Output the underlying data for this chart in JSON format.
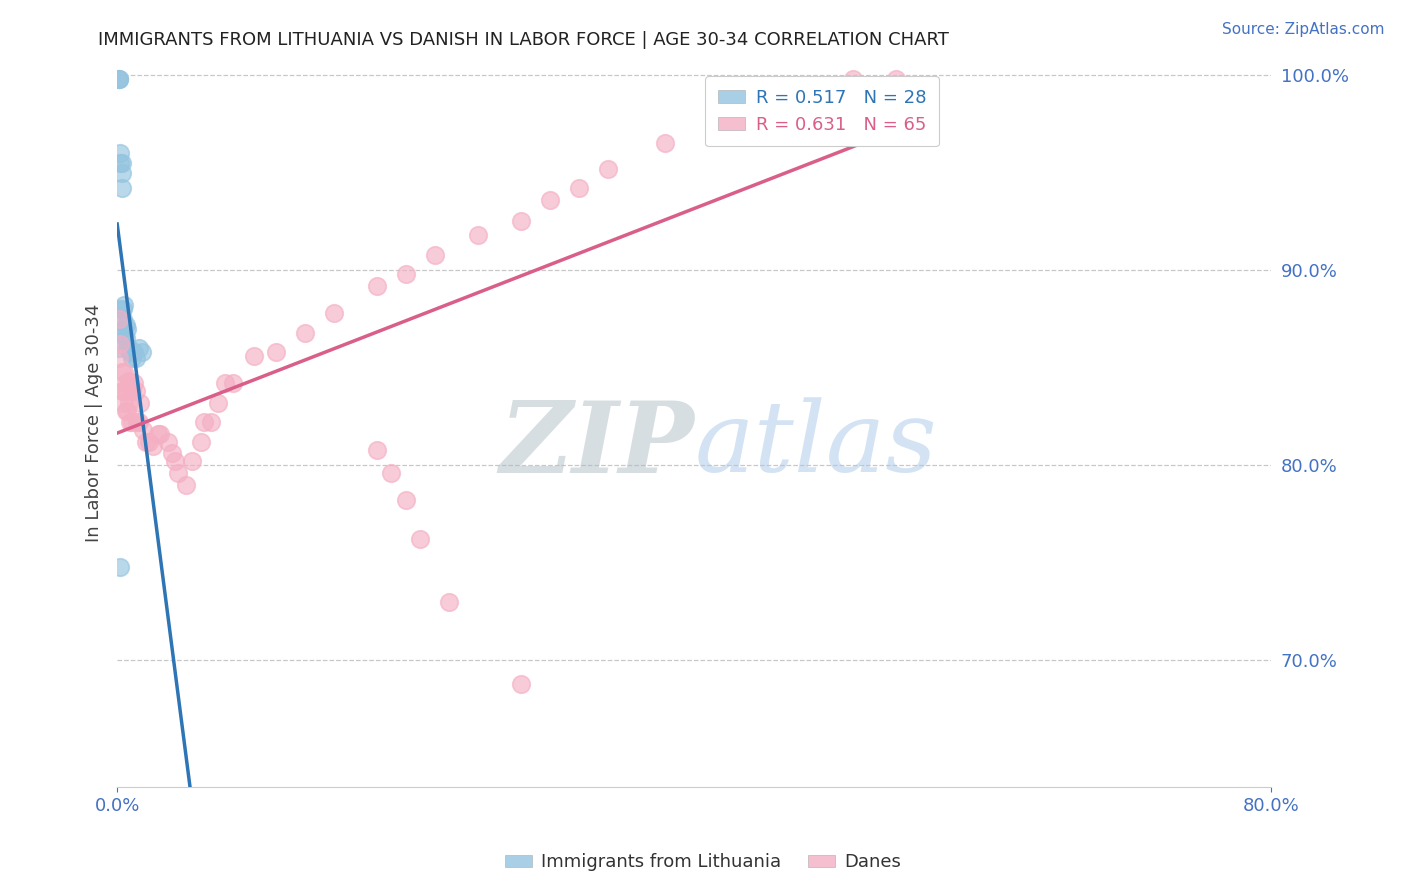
{
  "title": "IMMIGRANTS FROM LITHUANIA VS DANISH IN LABOR FORCE | AGE 30-34 CORRELATION CHART",
  "source": "Source: ZipAtlas.com",
  "ylabel": "In Labor Force | Age 30-34",
  "xmin": 0.0,
  "xmax": 0.8,
  "ymin": 0.635,
  "ymax": 1.008,
  "y_ticks": [
    0.7,
    0.8,
    0.9,
    1.0
  ],
  "y_tick_labels": [
    "70.0%",
    "80.0%",
    "90.0%",
    "100.0%"
  ],
  "blue_label": "Immigrants from Lithuania",
  "pink_label": "Danes",
  "blue_R": 0.517,
  "blue_N": 28,
  "pink_R": 0.631,
  "pink_N": 65,
  "blue_color": "#94c4e0",
  "pink_color": "#f4afc3",
  "blue_line_color": "#2e75b6",
  "pink_line_color": "#d95f8a",
  "blue_points_x": [
    0.001,
    0.001,
    0.001,
    0.002,
    0.002,
    0.003,
    0.003,
    0.003,
    0.004,
    0.004,
    0.005,
    0.005,
    0.006,
    0.006,
    0.007,
    0.007,
    0.008,
    0.009,
    0.01,
    0.011,
    0.012,
    0.013,
    0.015,
    0.017,
    0.001,
    0.001,
    0.001,
    0.002
  ],
  "blue_points_y": [
    0.998,
    0.998,
    0.998,
    0.96,
    0.955,
    0.955,
    0.95,
    0.942,
    0.88,
    0.875,
    0.882,
    0.87,
    0.872,
    0.865,
    0.87,
    0.86,
    0.86,
    0.858,
    0.855,
    0.858,
    0.858,
    0.855,
    0.86,
    0.858,
    0.88,
    0.868,
    0.86,
    0.748
  ],
  "pink_points_x": [
    0.001,
    0.001,
    0.002,
    0.003,
    0.003,
    0.004,
    0.005,
    0.005,
    0.006,
    0.006,
    0.007,
    0.007,
    0.008,
    0.008,
    0.009,
    0.009,
    0.01,
    0.01,
    0.012,
    0.013,
    0.014,
    0.015,
    0.016,
    0.018,
    0.02,
    0.022,
    0.025,
    0.028,
    0.03,
    0.035,
    0.038,
    0.04,
    0.042,
    0.048,
    0.052,
    0.058,
    0.06,
    0.065,
    0.07,
    0.075,
    0.08,
    0.095,
    0.11,
    0.13,
    0.15,
    0.18,
    0.2,
    0.22,
    0.25,
    0.28,
    0.3,
    0.32,
    0.34,
    0.38,
    0.42,
    0.45,
    0.48,
    0.51,
    0.54,
    0.18,
    0.19,
    0.2,
    0.21,
    0.23,
    0.28
  ],
  "pink_points_y": [
    0.875,
    0.855,
    0.862,
    0.848,
    0.838,
    0.832,
    0.848,
    0.838,
    0.842,
    0.828,
    0.838,
    0.828,
    0.843,
    0.832,
    0.842,
    0.822,
    0.838,
    0.822,
    0.842,
    0.838,
    0.822,
    0.822,
    0.832,
    0.818,
    0.812,
    0.812,
    0.81,
    0.816,
    0.816,
    0.812,
    0.806,
    0.802,
    0.796,
    0.79,
    0.802,
    0.812,
    0.822,
    0.822,
    0.832,
    0.842,
    0.842,
    0.856,
    0.858,
    0.868,
    0.878,
    0.892,
    0.898,
    0.908,
    0.918,
    0.925,
    0.936,
    0.942,
    0.952,
    0.965,
    0.978,
    0.985,
    0.992,
    0.998,
    0.998,
    0.808,
    0.796,
    0.782,
    0.762,
    0.73,
    0.688
  ],
  "watermark_zip": "ZIP",
  "watermark_atlas": "atlas",
  "background_color": "#ffffff",
  "grid_color": "#c8c8c8",
  "tick_color": "#4472c4"
}
